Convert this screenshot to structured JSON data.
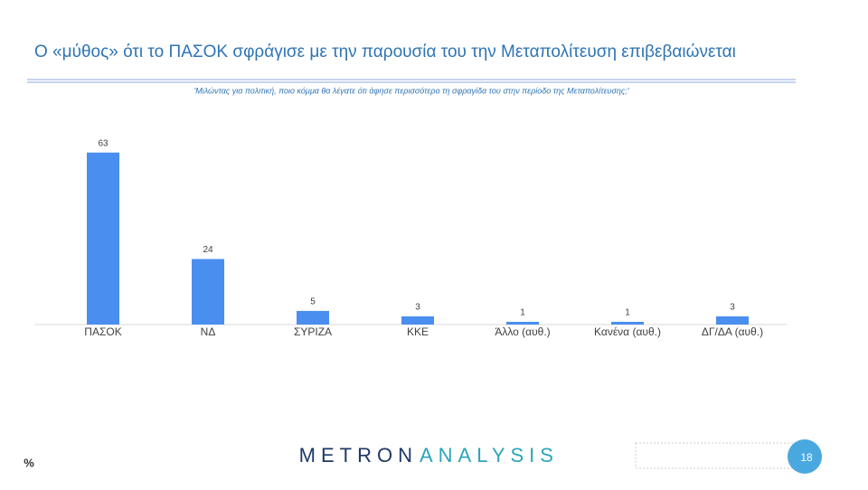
{
  "chart_data": {
    "type": "bar",
    "title": "Ο «μύθος» ότι το ΠΑΣΟΚ σφράγισε με την παρουσία του την Μεταπολίτευση επιβεβαιώνεται",
    "subtitle": "'Μιλώντας για πολιτική, ποιο κόμμα θα λέγατε ότι άφησε περισσότερο τη σφραγίδα του στην περίοδο της Μεταπολίτευσης;'",
    "categories": [
      "ΠΑΣΟΚ",
      "ΝΔ",
      "ΣΥΡΙΖΑ",
      "ΚΚΕ",
      "Άλλο (αυθ.)",
      "Κανένα (αυθ.)",
      "ΔΓ/ΔΑ (αυθ.)"
    ],
    "values": [
      63,
      24,
      5,
      3,
      1,
      1,
      3
    ],
    "color": "#4a8ef0",
    "unit_label": "%"
  },
  "footer": {
    "logo_left": "METRON",
    "logo_right": "ANALYSIS",
    "page_number": "18"
  }
}
